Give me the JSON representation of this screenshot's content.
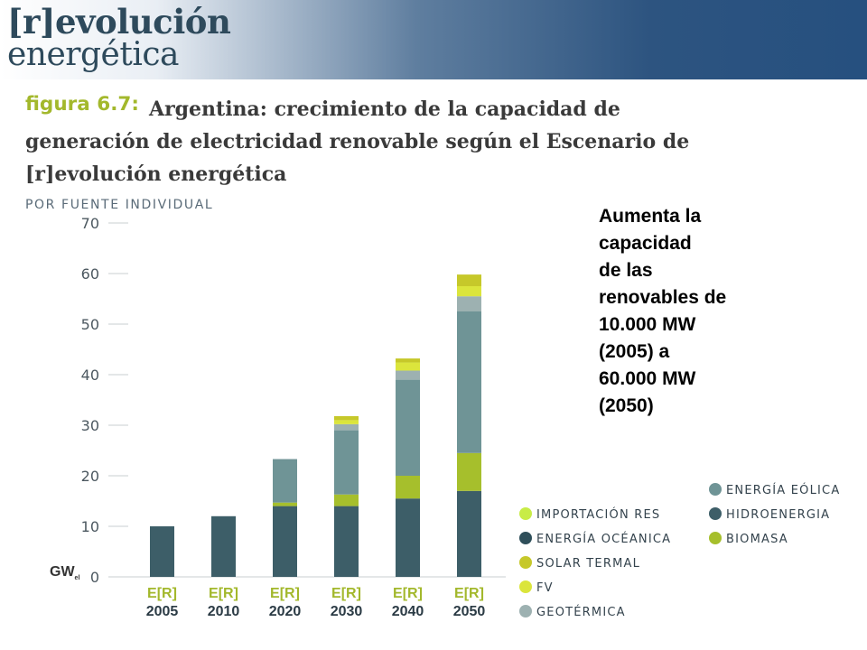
{
  "header": {
    "brand_line1": "[r]evolución",
    "brand_line2": "energética"
  },
  "figure": {
    "label": "figura 6.7:",
    "title": "Argentina: crecimiento de la capacidad de generación de electricidad renovable según el Escenario de [r]evolución energética",
    "subtitle": "POR FUENTE INDIVIDUAL"
  },
  "note": "Aumenta la\ncapacidad\nde las\nrenovables de\n10.000 MW\n(2005) a\n60.000 MW\n(2050)",
  "chart_data": {
    "type": "bar",
    "stacked": true,
    "ylabel_main": "GW",
    "ylabel_sub": "el",
    "ylim": [
      0,
      70
    ],
    "yticks": [
      0,
      10,
      20,
      30,
      40,
      50,
      60,
      70
    ],
    "category_tag": "E[R]",
    "categories": [
      "2005",
      "2010",
      "2020",
      "2030",
      "2040",
      "2050"
    ],
    "series": [
      {
        "name": "HIDROENERGIA",
        "color": "#3d5e68",
        "values": [
          10,
          12,
          14,
          14,
          15.5,
          17
        ]
      },
      {
        "name": "BIOMASA",
        "color": "#a6bf2c",
        "values": [
          0,
          0,
          0.7,
          2.3,
          4.5,
          7.5
        ]
      },
      {
        "name": "ENERGÍA EÓLICA",
        "color": "#6f9496",
        "values": [
          0,
          0,
          8.6,
          12.7,
          19,
          28
        ]
      },
      {
        "name": "GEOTÉRMICA",
        "color": "#9db1b1",
        "values": [
          0,
          0,
          0,
          1.2,
          1.8,
          3
        ]
      },
      {
        "name": "FV",
        "color": "#dbe53c",
        "values": [
          0,
          0,
          0,
          0.8,
          1.6,
          2
        ]
      },
      {
        "name": "SOLAR TERMAL",
        "color": "#c6c82a",
        "values": [
          0,
          0,
          0,
          0.8,
          0.8,
          2.3
        ]
      },
      {
        "name": "ENERGÍA OCÉANICA",
        "color": "#2f4f5a",
        "values": [
          0,
          0,
          0,
          0,
          0,
          0
        ]
      },
      {
        "name": "IMPORTACIÓN RES",
        "color": "#c8ec46",
        "values": [
          0,
          0,
          0,
          0,
          0,
          0
        ]
      }
    ],
    "legend": {
      "left": [
        "IMPORTACIÓN RES",
        "ENERGÍA OCÉANICA",
        "SOLAR TERMAL",
        "FV",
        "GEOTÉRMICA"
      ],
      "right": [
        "ENERGÍA EÓLICA",
        "HIDROENERGIA",
        "BIOMASA"
      ],
      "placement": "bottom-right"
    }
  }
}
